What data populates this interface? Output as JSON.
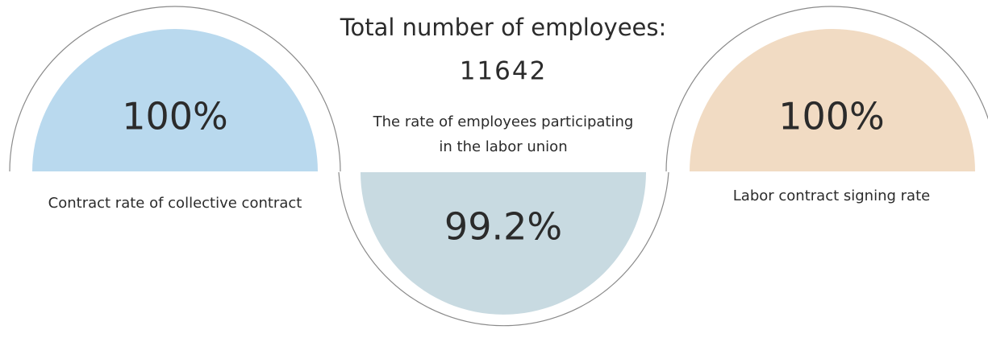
{
  "header": {
    "title": "Total number of employees:",
    "total": "11642"
  },
  "items": [
    {
      "value": "100%",
      "label": "Contract rate of collective contract"
    },
    {
      "value": "99.2%",
      "label_lines": [
        "The rate of employees participating",
        "in the labor union"
      ]
    },
    {
      "value": "100%",
      "label": "Labor contract signing rate"
    }
  ]
}
